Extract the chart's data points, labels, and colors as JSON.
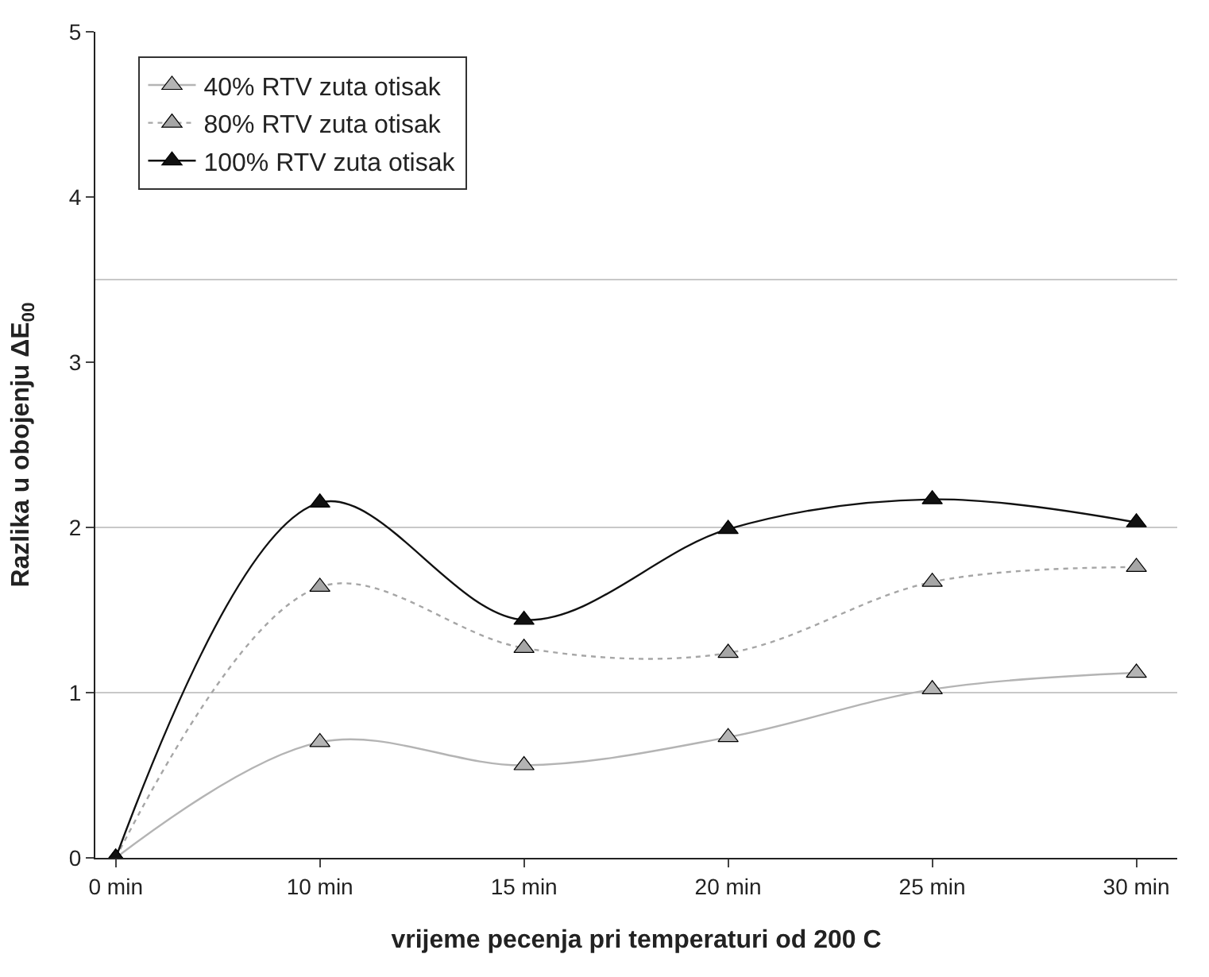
{
  "chart_data": {
    "type": "line",
    "xlabel": "vrijeme pecenja pri temperaturi od 200 C",
    "ylabel": "Razlika u obojenju ΔE$_{00}$",
    "categories": [
      "0 min",
      "10 min",
      "15 min",
      "20 min",
      "25 min",
      "30 min"
    ],
    "series": [
      {
        "name": "40% RTV zuta otisak",
        "color": "#b4b4b4",
        "line_style": "solid",
        "values": [
          0,
          0.7,
          0.56,
          0.73,
          1.02,
          1.12
        ]
      },
      {
        "name": "80% RTV zuta otisak",
        "color": "#a6a6a6",
        "line_style": "dotted",
        "values": [
          0,
          1.64,
          1.27,
          1.24,
          1.67,
          1.76
        ]
      },
      {
        "name": "100% RTV zuta otisak",
        "color": "#111111",
        "line_style": "solid",
        "values": [
          0,
          2.15,
          1.44,
          1.99,
          2.17,
          2.03
        ]
      }
    ],
    "ylim": [
      0,
      5
    ],
    "yticks": [
      0,
      1,
      2,
      3,
      4,
      5
    ],
    "grid": false,
    "legend": "top left",
    "marker": "triangle",
    "ref_lines": [
      {
        "axis": "y",
        "value": 1,
        "color": "#c8c8c8"
      },
      {
        "axis": "y",
        "value": 2,
        "color": "#c8c8c8"
      },
      {
        "axis": "y",
        "value": 3.5,
        "color": "#c8c8c8"
      }
    ]
  }
}
